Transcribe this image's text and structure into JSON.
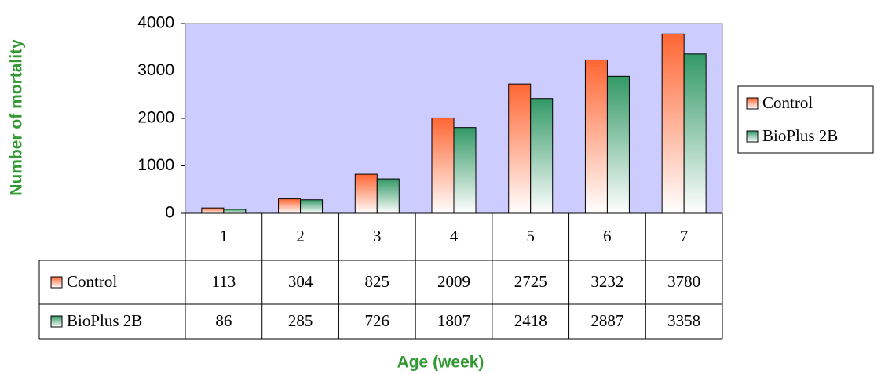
{
  "chart_data": {
    "type": "bar",
    "x_label": "Age (week)",
    "y_label": "Number of mortality",
    "categories": [
      "1",
      "2",
      "3",
      "4",
      "5",
      "6",
      "7"
    ],
    "series": [
      {
        "name": "Control",
        "color": "#ff6633",
        "values": [
          113,
          304,
          825,
          2009,
          2725,
          3232,
          3780
        ]
      },
      {
        "name": "BioPlus 2B",
        "color": "#339966",
        "values": [
          86,
          285,
          726,
          1807,
          2418,
          2887,
          3358
        ]
      }
    ],
    "ylim": [
      0,
      4000
    ],
    "yticks": [
      0,
      1000,
      2000,
      3000,
      4000
    ],
    "legend": "right",
    "data_table": true
  }
}
